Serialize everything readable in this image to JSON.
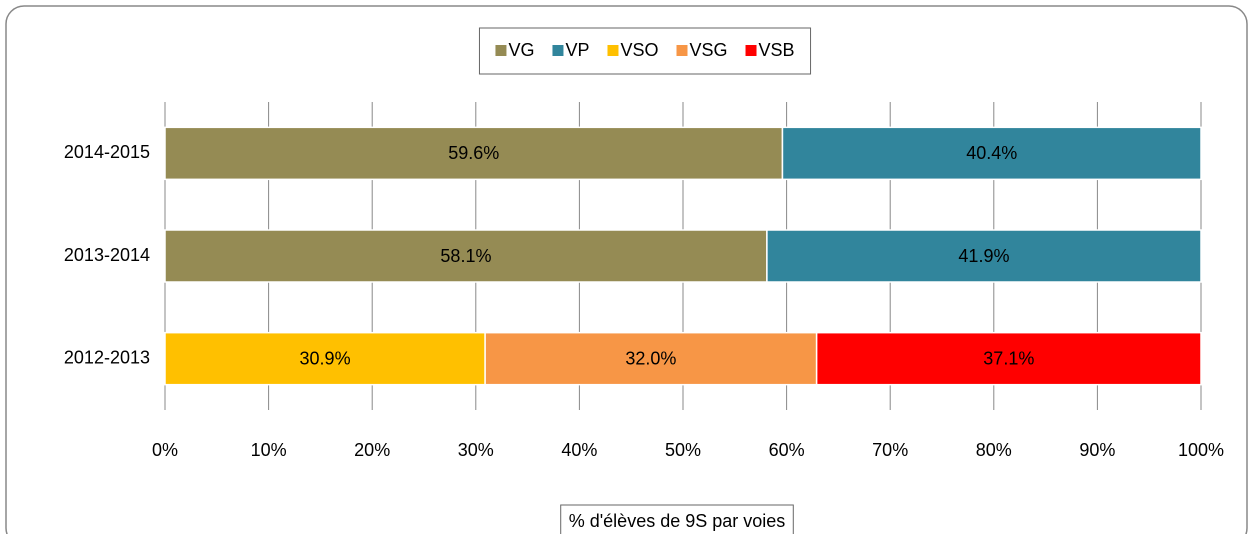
{
  "chart_data": {
    "type": "stacked-bar-horizontal",
    "categories": [
      "2014-2015",
      "2013-2014",
      "2012-2013"
    ],
    "series": [
      {
        "name": "VG",
        "color": "#958b54",
        "values": [
          59.6,
          58.1,
          null
        ],
        "value_labels": [
          "59.6%",
          "58.1%",
          null
        ]
      },
      {
        "name": "VP",
        "color": "#31859c",
        "values": [
          40.4,
          41.9,
          null
        ],
        "value_labels": [
          "40.4%",
          "41.9%",
          null
        ]
      },
      {
        "name": "VSO",
        "color": "#ffc000",
        "values": [
          null,
          null,
          30.9
        ],
        "value_labels": [
          null,
          null,
          "30.9%"
        ]
      },
      {
        "name": "VSG",
        "color": "#f79646",
        "values": [
          null,
          null,
          32.0
        ],
        "value_labels": [
          null,
          null,
          "32.0%"
        ]
      },
      {
        "name": "VSB",
        "color": "#ff0000",
        "values": [
          null,
          null,
          37.1
        ],
        "value_labels": [
          null,
          null,
          "37.1%"
        ]
      }
    ],
    "xlabel": "% d'élèves de 9S par voies",
    "xlim": [
      0,
      100
    ],
    "xticks": [
      {
        "value": 0,
        "label": "0%"
      },
      {
        "value": 10,
        "label": "10%"
      },
      {
        "value": 20,
        "label": "20%"
      },
      {
        "value": 30,
        "label": "30%"
      },
      {
        "value": 40,
        "label": "40%"
      },
      {
        "value": 50,
        "label": "50%"
      },
      {
        "value": 60,
        "label": "60%"
      },
      {
        "value": 70,
        "label": "70%"
      },
      {
        "value": 80,
        "label": "80%"
      },
      {
        "value": 90,
        "label": "90%"
      },
      {
        "value": 100,
        "label": "100%"
      }
    ],
    "grid": true,
    "legend": "top"
  }
}
